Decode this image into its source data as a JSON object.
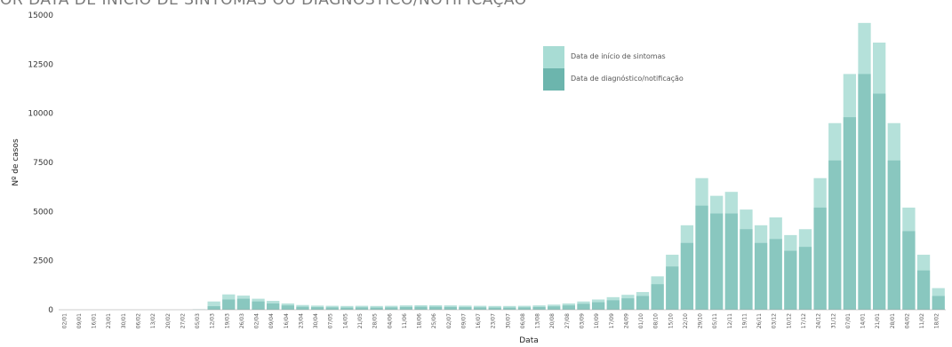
{
  "header": {
    "title": "OR DATA DE INÍCIO DE SINTOMAS OU DIAGNÓSTICO/NOTIFICAÇÃO"
  },
  "chart_data": {
    "type": "bar",
    "title": "OR DATA DE INÍCIO DE SINTOMAS OU DIAGNÓSTICO/NOTIFICAÇÃO",
    "xlabel": "Data",
    "ylabel": "Nº de casos",
    "ylim": [
      0,
      15000
    ],
    "yticks": [
      0,
      2500,
      5000,
      7500,
      10000,
      12500,
      15000
    ],
    "grid": false,
    "legend_position": "top-center",
    "x_tick_labels": [
      "02/01",
      "09/01",
      "16/01",
      "23/01",
      "30/01",
      "06/02",
      "13/02",
      "20/02",
      "27/02",
      "05/03",
      "12/03",
      "19/03",
      "26/03",
      "02/04",
      "09/04",
      "16/04",
      "23/04",
      "30/04",
      "07/05",
      "14/05",
      "21/05",
      "28/05",
      "04/06",
      "11/06",
      "18/06",
      "25/06",
      "02/07",
      "09/07",
      "16/07",
      "23/07",
      "30/07",
      "06/08",
      "13/08",
      "20/08",
      "27/08",
      "03/09",
      "10/09",
      "17/09",
      "24/09",
      "01/10",
      "08/10",
      "15/10",
      "22/10",
      "29/10",
      "05/11",
      "12/11",
      "19/11",
      "26/11",
      "03/12",
      "10/12",
      "17/12",
      "24/12",
      "31/12",
      "07/01",
      "14/01",
      "21/01",
      "28/01",
      "04/02",
      "11/02",
      "18/02"
    ],
    "series": [
      {
        "name": "Data de início de sintomas",
        "color": "#a8dcd4",
        "values": [
          0,
          0,
          0,
          0,
          0,
          0,
          0,
          0,
          0,
          20,
          420,
          780,
          720,
          560,
          450,
          320,
          240,
          210,
          200,
          190,
          200,
          190,
          200,
          220,
          230,
          230,
          220,
          210,
          200,
          190,
          190,
          200,
          220,
          260,
          320,
          420,
          520,
          640,
          760,
          900,
          1700,
          2800,
          4300,
          6700,
          5800,
          6000,
          5100,
          4300,
          4700,
          3800,
          4100,
          6700,
          9500,
          12000,
          14600,
          13600,
          9500,
          5200,
          2800,
          1100
        ]
      },
      {
        "name": "Data de diagnóstico/notificação",
        "color": "#6cb5ad",
        "values": [
          0,
          0,
          0,
          0,
          0,
          0,
          0,
          0,
          0,
          0,
          180,
          520,
          560,
          420,
          320,
          220,
          150,
          130,
          120,
          110,
          120,
          110,
          120,
          140,
          150,
          150,
          140,
          130,
          120,
          110,
          110,
          120,
          140,
          170,
          220,
          300,
          380,
          480,
          580,
          700,
          1300,
          2200,
          3400,
          5300,
          4900,
          4900,
          4100,
          3400,
          3600,
          3000,
          3200,
          5200,
          7600,
          9800,
          12000,
          11000,
          7600,
          4000,
          2000,
          700
        ]
      }
    ]
  }
}
